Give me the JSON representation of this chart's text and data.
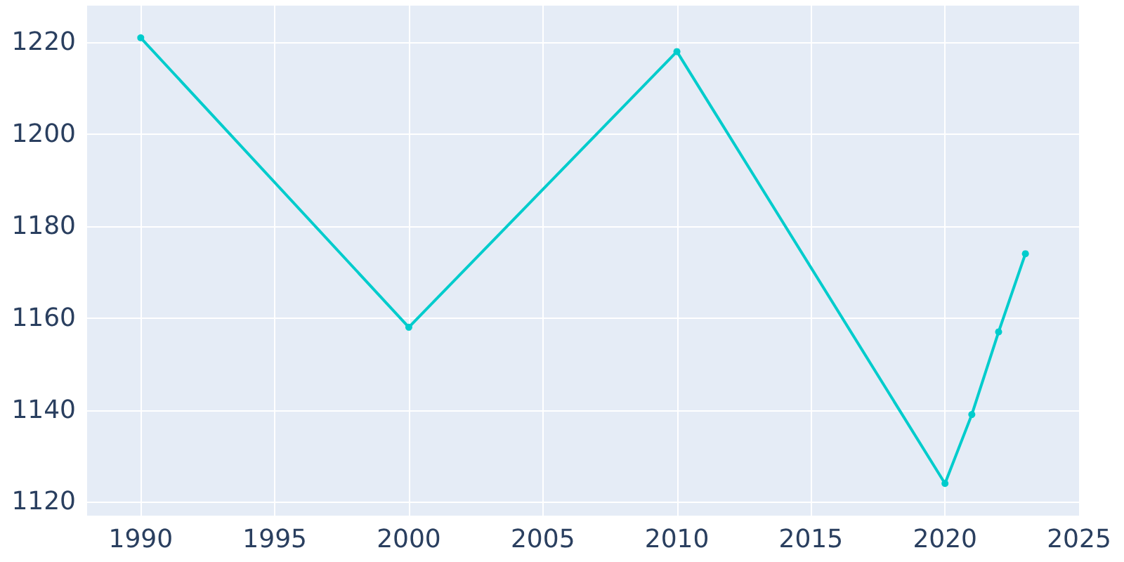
{
  "chart_data": {
    "type": "line",
    "x": [
      1990,
      2000,
      2010,
      2020,
      2021,
      2022,
      2023
    ],
    "series": [
      {
        "color": "#00cccc",
        "values": [
          1221,
          1158,
          1218,
          1124,
          1139,
          1157,
          1174
        ]
      }
    ],
    "xlim": [
      1988,
      2025
    ],
    "xticks": [
      1990,
      1995,
      2000,
      2005,
      2010,
      2015,
      2020,
      2025
    ],
    "ylim": [
      1117,
      1228
    ],
    "yticks": [
      1120,
      1140,
      1160,
      1180,
      1200,
      1220
    ],
    "grid": true,
    "marker": "circle",
    "line_style": "solid"
  }
}
